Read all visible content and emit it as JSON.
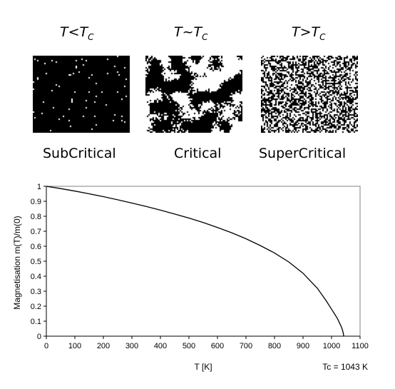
{
  "panels": [
    {
      "condition_main": "T<T",
      "condition_sub": "C",
      "label": "SubCritical",
      "white_fraction": 0.02,
      "cluster": "none"
    },
    {
      "condition_main": "T~T",
      "condition_sub": "C",
      "label": "Critical",
      "white_fraction": 0.45,
      "cluster": "large"
    },
    {
      "condition_main": "T>T",
      "condition_sub": "C",
      "label": "SuperCritical",
      "white_fraction": 0.5,
      "cluster": "none"
    }
  ],
  "chart_data": {
    "type": "line",
    "ylabel": "Magnetisation m(T)/m(0)",
    "xlabel": "T [K]",
    "annotation": "Tc = 1043 K",
    "xlim": [
      0,
      1100
    ],
    "ylim": [
      0,
      1
    ],
    "xticks": [
      0,
      100,
      200,
      300,
      400,
      500,
      600,
      700,
      800,
      900,
      1000,
      1100
    ],
    "yticks": [
      0,
      0.1,
      0.2,
      0.3,
      0.4,
      0.5,
      0.6,
      0.7,
      0.8,
      0.9,
      1
    ],
    "grid": false,
    "series": [
      {
        "x": [
          0,
          50,
          100,
          150,
          200,
          250,
          300,
          350,
          400,
          450,
          500,
          550,
          600,
          650,
          700,
          750,
          800,
          850,
          900,
          950,
          980,
          1000,
          1010,
          1020,
          1030,
          1035,
          1040,
          1043
        ],
        "y": [
          1.0,
          0.985,
          0.968,
          0.95,
          0.931,
          0.91,
          0.888,
          0.865,
          0.841,
          0.815,
          0.788,
          0.758,
          0.725,
          0.69,
          0.65,
          0.605,
          0.555,
          0.495,
          0.42,
          0.32,
          0.24,
          0.18,
          0.15,
          0.12,
          0.08,
          0.06,
          0.03,
          0.0
        ]
      }
    ],
    "line_color": "#000000"
  }
}
